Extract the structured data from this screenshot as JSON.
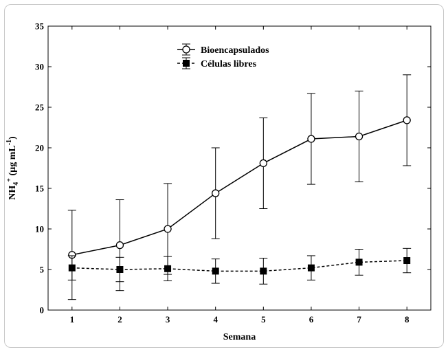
{
  "chart_data": {
    "type": "line",
    "title": "",
    "xlabel": "Semana",
    "ylabel_main": "NH",
    "ylabel_sub": "4",
    "ylabel_sup": "+",
    "ylabel_unit": " (µg mL",
    "ylabel_unit_sup": "-1",
    "ylabel_close": ")",
    "x": [
      1,
      2,
      3,
      4,
      5,
      6,
      7,
      8
    ],
    "x_ticks": [
      "1",
      "2",
      "3",
      "4",
      "5",
      "6",
      "7",
      "8"
    ],
    "xlim": [
      0.5,
      8.5
    ],
    "ylim": [
      0,
      35
    ],
    "y_ticks": [
      "0",
      "5",
      "10",
      "15",
      "20",
      "25",
      "30",
      "35"
    ],
    "grid": false,
    "legend_position": "top-center",
    "series": [
      {
        "name": "Bioencapsulados",
        "marker": "open-circle",
        "line_style": "solid",
        "values": [
          6.8,
          8.0,
          10.0,
          14.4,
          18.1,
          21.1,
          21.4,
          23.4
        ],
        "error": [
          5.5,
          5.6,
          5.6,
          5.6,
          5.6,
          5.6,
          5.6,
          5.6
        ]
      },
      {
        "name": "Células libres",
        "marker": "filled-square",
        "line_style": "dashed",
        "values": [
          5.2,
          5.0,
          5.1,
          4.8,
          4.8,
          5.2,
          5.9,
          6.1
        ],
        "error": [
          1.5,
          1.5,
          1.5,
          1.5,
          1.6,
          1.5,
          1.6,
          1.5
        ]
      }
    ]
  }
}
